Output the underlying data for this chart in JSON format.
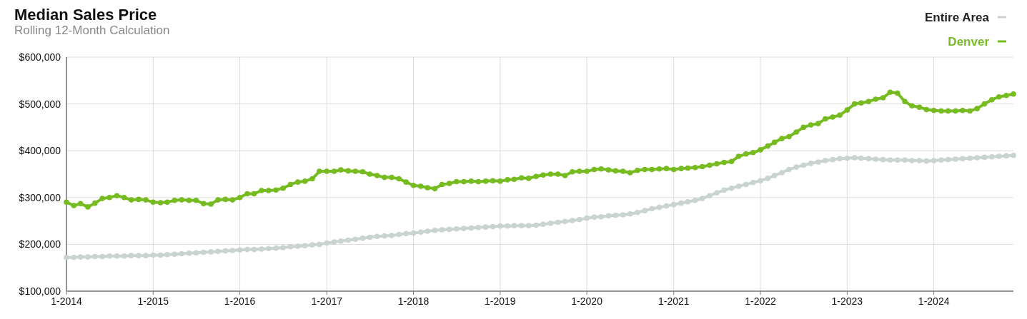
{
  "chart_data": {
    "type": "line",
    "title": "Median Sales Price",
    "subtitle": "Rolling 12-Month Calculation",
    "x": [
      "2014-01",
      "2014-02",
      "2014-03",
      "2014-04",
      "2014-05",
      "2014-06",
      "2014-07",
      "2014-08",
      "2014-09",
      "2014-10",
      "2014-11",
      "2014-12",
      "2015-01",
      "2015-02",
      "2015-03",
      "2015-04",
      "2015-05",
      "2015-06",
      "2015-07",
      "2015-08",
      "2015-09",
      "2015-10",
      "2015-11",
      "2015-12",
      "2016-01",
      "2016-02",
      "2016-03",
      "2016-04",
      "2016-05",
      "2016-06",
      "2016-07",
      "2016-08",
      "2016-09",
      "2016-10",
      "2016-11",
      "2016-12",
      "2017-01",
      "2017-02",
      "2017-03",
      "2017-04",
      "2017-05",
      "2017-06",
      "2017-07",
      "2017-08",
      "2017-09",
      "2017-10",
      "2017-11",
      "2017-12",
      "2018-01",
      "2018-02",
      "2018-03",
      "2018-04",
      "2018-05",
      "2018-06",
      "2018-07",
      "2018-08",
      "2018-09",
      "2018-10",
      "2018-11",
      "2018-12",
      "2019-01",
      "2019-02",
      "2019-03",
      "2019-04",
      "2019-05",
      "2019-06",
      "2019-07",
      "2019-08",
      "2019-09",
      "2019-10",
      "2019-11",
      "2019-12",
      "2020-01",
      "2020-02",
      "2020-03",
      "2020-04",
      "2020-05",
      "2020-06",
      "2020-07",
      "2020-08",
      "2020-09",
      "2020-10",
      "2020-11",
      "2020-12",
      "2021-01",
      "2021-02",
      "2021-03",
      "2021-04",
      "2021-05",
      "2021-06",
      "2021-07",
      "2021-08",
      "2021-09",
      "2021-10",
      "2021-11",
      "2021-12",
      "2022-01",
      "2022-02",
      "2022-03",
      "2022-04",
      "2022-05",
      "2022-06",
      "2022-07",
      "2022-08",
      "2022-09",
      "2022-10",
      "2022-11",
      "2022-12",
      "2023-01",
      "2023-02",
      "2023-03",
      "2023-04",
      "2023-05",
      "2023-06",
      "2023-07",
      "2023-08",
      "2023-09",
      "2023-10",
      "2023-11",
      "2023-12",
      "2024-01",
      "2024-02",
      "2024-03",
      "2024-04",
      "2024-05",
      "2024-06",
      "2024-07",
      "2024-08",
      "2024-09",
      "2024-10",
      "2024-11",
      "2024-12"
    ],
    "xlim": [
      "2014-01",
      "2024-12"
    ],
    "xticks": [
      {
        "value": "2014-01",
        "label": "1-2014"
      },
      {
        "value": "2015-01",
        "label": "1-2015"
      },
      {
        "value": "2016-01",
        "label": "1-2016"
      },
      {
        "value": "2017-01",
        "label": "1-2017"
      },
      {
        "value": "2018-01",
        "label": "1-2018"
      },
      {
        "value": "2019-01",
        "label": "1-2019"
      },
      {
        "value": "2020-01",
        "label": "1-2020"
      },
      {
        "value": "2021-01",
        "label": "1-2021"
      },
      {
        "value": "2022-01",
        "label": "1-2022"
      },
      {
        "value": "2023-01",
        "label": "1-2023"
      },
      {
        "value": "2024-01",
        "label": "1-2024"
      }
    ],
    "ylim": [
      100000,
      600000
    ],
    "yticks": [
      {
        "value": 100000,
        "label": "$100,000"
      },
      {
        "value": 200000,
        "label": "$200,000"
      },
      {
        "value": 300000,
        "label": "$300,000"
      },
      {
        "value": 400000,
        "label": "$400,000"
      },
      {
        "value": 500000,
        "label": "$500,000"
      },
      {
        "value": 600000,
        "label": "$600,000"
      }
    ],
    "grid": true,
    "legend": "top right",
    "marker": "circle",
    "line_style": "solid",
    "series": [
      {
        "name": "Entire Area",
        "color": "#c9d3d1",
        "values": [
          172000,
          172000,
          173000,
          173000,
          174000,
          174000,
          175000,
          175000,
          175000,
          176000,
          176000,
          176000,
          177000,
          177000,
          178000,
          179000,
          180000,
          181000,
          182000,
          183000,
          184000,
          185000,
          186000,
          187000,
          188000,
          189000,
          189000,
          190000,
          191000,
          192000,
          193000,
          195000,
          196000,
          197000,
          199000,
          200000,
          203000,
          205000,
          207000,
          209000,
          211000,
          213000,
          215000,
          217000,
          218000,
          219000,
          221000,
          223000,
          224000,
          226000,
          228000,
          230000,
          231000,
          232000,
          233000,
          234000,
          235000,
          236000,
          237000,
          238000,
          239000,
          239000,
          240000,
          240000,
          240000,
          241000,
          243000,
          245000,
          247000,
          249000,
          251000,
          253000,
          256000,
          258000,
          259000,
          261000,
          262000,
          263000,
          265000,
          268000,
          272000,
          276000,
          279000,
          282000,
          285000,
          288000,
          291000,
          294000,
          298000,
          304000,
          310000,
          316000,
          320000,
          324000,
          328000,
          332000,
          336000,
          341000,
          347000,
          353000,
          360000,
          365000,
          369000,
          373000,
          376000,
          379000,
          381000,
          383000,
          384000,
          385000,
          384000,
          383000,
          382000,
          381000,
          380000,
          380000,
          380000,
          379000,
          379000,
          378000,
          379000,
          380000,
          381000,
          382000,
          383000,
          384000,
          385000,
          386000,
          387000,
          388000,
          389000,
          390000
        ]
      },
      {
        "name": "Denver",
        "color": "#76bc21",
        "values": [
          290000,
          283000,
          287000,
          280000,
          288000,
          298000,
          300000,
          304000,
          300000,
          295000,
          296000,
          295000,
          290000,
          289000,
          290000,
          294000,
          295000,
          294000,
          294000,
          287000,
          286000,
          295000,
          296000,
          295000,
          300000,
          308000,
          308000,
          315000,
          315000,
          316000,
          320000,
          328000,
          333000,
          335000,
          340000,
          356000,
          356000,
          356000,
          359000,
          357000,
          356000,
          355000,
          350000,
          347000,
          343000,
          343000,
          340000,
          333000,
          326000,
          324000,
          321000,
          319000,
          328000,
          330000,
          334000,
          334000,
          335000,
          334000,
          335000,
          336000,
          335000,
          338000,
          339000,
          342000,
          341000,
          345000,
          348000,
          350000,
          350000,
          347000,
          355000,
          356000,
          356000,
          360000,
          361000,
          359000,
          357000,
          356000,
          353000,
          358000,
          360000,
          360000,
          361000,
          362000,
          360000,
          362000,
          363000,
          364000,
          366000,
          369000,
          372000,
          375000,
          377000,
          388000,
          393000,
          396000,
          402000,
          410000,
          418000,
          426000,
          430000,
          440000,
          450000,
          455000,
          458000,
          468000,
          472000,
          476000,
          487000,
          500000,
          502000,
          505000,
          510000,
          513000,
          525000,
          523000,
          505000,
          496000,
          493000,
          488000,
          486000,
          485000,
          485000,
          485000,
          486000,
          485000,
          490000,
          500000,
          509000,
          515000,
          518000,
          521000
        ]
      }
    ]
  }
}
